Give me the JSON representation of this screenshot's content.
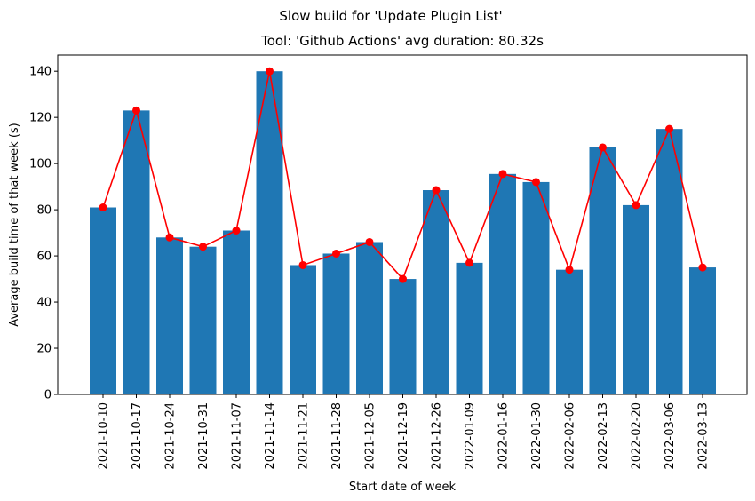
{
  "chart_data": {
    "type": "bar",
    "suptitle": "Slow build for 'Update Plugin List'",
    "title": "Tool: 'Github Actions' avg duration: 80.32s",
    "xlabel": "Start date of week",
    "ylabel": "Average build time of that week (s)",
    "ylim": [
      0,
      147
    ],
    "yticks": [
      "0",
      "20",
      "40",
      "60",
      "80",
      "100",
      "120",
      "140"
    ],
    "grid": false,
    "categories": [
      "2021-10-10",
      "2021-10-17",
      "2021-10-24",
      "2021-10-31",
      "2021-11-07",
      "2021-11-14",
      "2021-11-21",
      "2021-11-28",
      "2021-12-05",
      "2021-12-19",
      "2021-12-26",
      "2022-01-09",
      "2022-01-16",
      "2022-01-30",
      "2022-02-06",
      "2022-02-13",
      "2022-02-20",
      "2022-03-06",
      "2022-03-13"
    ],
    "series": [
      {
        "kind": "bar",
        "color": "#1f77b4",
        "values": [
          81,
          123,
          68,
          64,
          71,
          140,
          56,
          61,
          66,
          50,
          88.5,
          57,
          95.5,
          92,
          54,
          107,
          82,
          115,
          55
        ]
      },
      {
        "kind": "line",
        "color": "#ff0000",
        "marker": "circle",
        "values": [
          81,
          123,
          68,
          64,
          71,
          140,
          56,
          61,
          66,
          50,
          88.5,
          57,
          95.5,
          92,
          54,
          107,
          82,
          115,
          55
        ]
      }
    ]
  }
}
